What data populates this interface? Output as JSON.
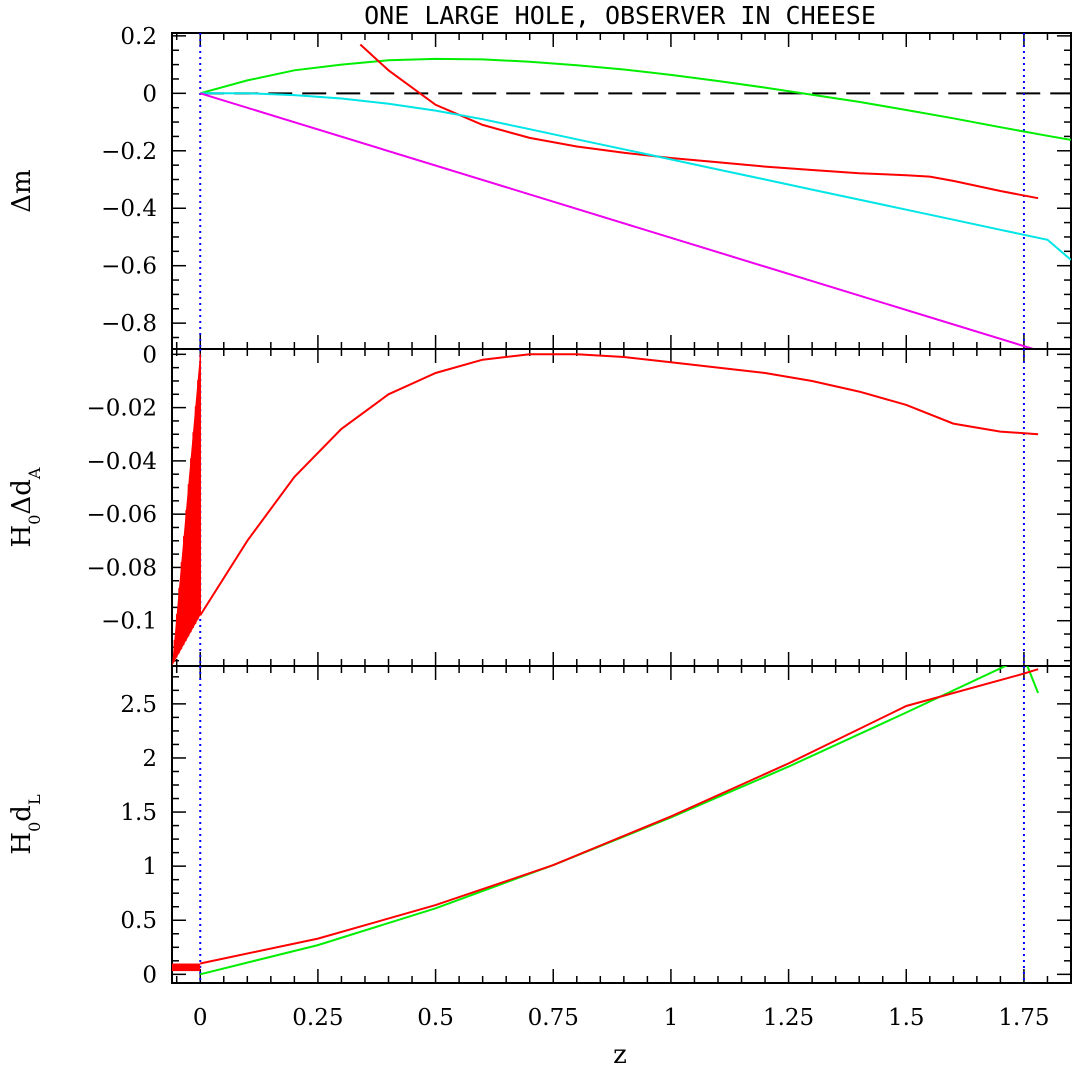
{
  "chart_data": {
    "type": "line",
    "title": "ONE LARGE HOLE, OBSERVER IN CHEESE",
    "xlabel": "z",
    "xlim": [
      -0.06,
      1.85
    ],
    "x_ticks": [
      0,
      0.25,
      0.5,
      0.75,
      1,
      1.25,
      1.5,
      1.75
    ],
    "x_tick_labels": [
      "0",
      "0.25",
      "0.5",
      "0.75",
      "1",
      "1.25",
      "1.5",
      "1.75"
    ],
    "vlines": [
      0,
      1.75
    ],
    "colors": {
      "red": "#ff0000",
      "green": "#00ee00",
      "cyan": "#00e5e5",
      "magenta": "#ee00ee",
      "vline": "#0000ff",
      "zero_line": "#000000"
    },
    "panels": [
      {
        "id": "dm",
        "ylabel": "Δm",
        "ylim": [
          -0.89,
          0.21
        ],
        "y_ticks": [
          0.2,
          0,
          -0.2,
          -0.4,
          -0.6,
          -0.8
        ],
        "y_tick_labels": [
          "0.2",
          "0",
          "−0.2",
          "−0.4",
          "−0.6",
          "−0.8"
        ],
        "zero_line": true,
        "series": [
          {
            "color": "green",
            "x": [
              0,
              0.1,
              0.2,
              0.3,
              0.4,
              0.5,
              0.6,
              0.7,
              0.8,
              0.9,
              1.0,
              1.1,
              1.2,
              1.3,
              1.4,
              1.5,
              1.6,
              1.7,
              1.8,
              1.85
            ],
            "y": [
              0,
              0.045,
              0.08,
              0.1,
              0.115,
              0.12,
              0.118,
              0.11,
              0.098,
              0.083,
              0.064,
              0.043,
              0.02,
              -0.005,
              -0.03,
              -0.058,
              -0.087,
              -0.118,
              -0.148,
              -0.162
            ]
          },
          {
            "color": "red",
            "x": [
              0.34,
              0.4,
              0.5,
              0.6,
              0.7,
              0.8,
              0.9,
              1.0,
              1.1,
              1.2,
              1.3,
              1.4,
              1.5,
              1.55,
              1.6,
              1.7,
              1.78
            ],
            "y": [
              0.17,
              0.08,
              -0.04,
              -0.11,
              -0.155,
              -0.185,
              -0.207,
              -0.225,
              -0.24,
              -0.255,
              -0.267,
              -0.278,
              -0.285,
              -0.29,
              -0.305,
              -0.34,
              -0.365
            ]
          },
          {
            "color": "cyan",
            "x": [
              0,
              0.1,
              0.2,
              0.3,
              0.4,
              0.5,
              0.6,
              0.7,
              0.8,
              0.9,
              1.0,
              1.1,
              1.2,
              1.3,
              1.4,
              1.5,
              1.6,
              1.7,
              1.8,
              1.85
            ],
            "y": [
              0,
              0,
              -0.006,
              -0.018,
              -0.036,
              -0.06,
              -0.09,
              -0.125,
              -0.16,
              -0.195,
              -0.23,
              -0.265,
              -0.3,
              -0.335,
              -0.37,
              -0.405,
              -0.44,
              -0.475,
              -0.51,
              -0.58
            ]
          },
          {
            "color": "magenta",
            "x": [
              0,
              1.79
            ],
            "y": [
              0,
              -0.9
            ]
          }
        ]
      },
      {
        "id": "dda",
        "ylabel": "H0ΔdA",
        "ylim": [
          -0.117,
          0.002
        ],
        "y_ticks": [
          0,
          -0.02,
          -0.04,
          -0.06,
          -0.08,
          -0.1
        ],
        "y_tick_labels": [
          "0",
          "−0.02",
          "−0.04",
          "−0.06",
          "−0.08",
          "−0.1"
        ],
        "series": [
          {
            "color": "red",
            "x": [
              0,
              0.1,
              0.2,
              0.3,
              0.4,
              0.5,
              0.6,
              0.7,
              0.8,
              0.9,
              1.0,
              1.1,
              1.2,
              1.3,
              1.4,
              1.5,
              1.6,
              1.7,
              1.78
            ],
            "y": [
              -0.098,
              -0.07,
              -0.046,
              -0.028,
              -0.015,
              -0.007,
              -0.002,
              0,
              0,
              -0.001,
              -0.003,
              -0.005,
              -0.007,
              -0.01,
              -0.014,
              -0.019,
              -0.026,
              -0.029,
              -0.03
            ]
          },
          {
            "color": "red",
            "style": "filled-oscillation",
            "x": [
              -0.06,
              0
            ],
            "y": [
              -0.117,
              0
            ]
          }
        ]
      },
      {
        "id": "dl",
        "ylabel": "H0dL",
        "ylim": [
          -0.08,
          2.85
        ],
        "y_ticks": [
          0,
          0.5,
          1,
          1.5,
          2,
          2.5
        ],
        "y_tick_labels": [
          "0",
          "0.5",
          "1",
          "1.5",
          "2",
          "2.5"
        ],
        "series": [
          {
            "color": "green",
            "x": [
              0,
              0.25,
              0.5,
              0.75,
              1.0,
              1.25,
              1.5,
              1.75,
              1.78
            ],
            "y": [
              0,
              0.27,
              0.61,
              1.01,
              1.45,
              1.92,
              2.42,
              2.93,
              2.6
            ]
          },
          {
            "color": "red",
            "x": [
              0,
              0.25,
              0.5,
              0.75,
              1.0,
              1.25,
              1.5,
              1.75,
              1.78
            ],
            "y": [
              0.1,
              0.33,
              0.64,
              1.01,
              1.46,
              1.95,
              2.48,
              2.78,
              2.82
            ]
          },
          {
            "color": "red",
            "style": "filled-band",
            "x": [
              -0.06,
              0
            ],
            "y": [
              0.03,
              0.1
            ]
          }
        ]
      }
    ]
  }
}
